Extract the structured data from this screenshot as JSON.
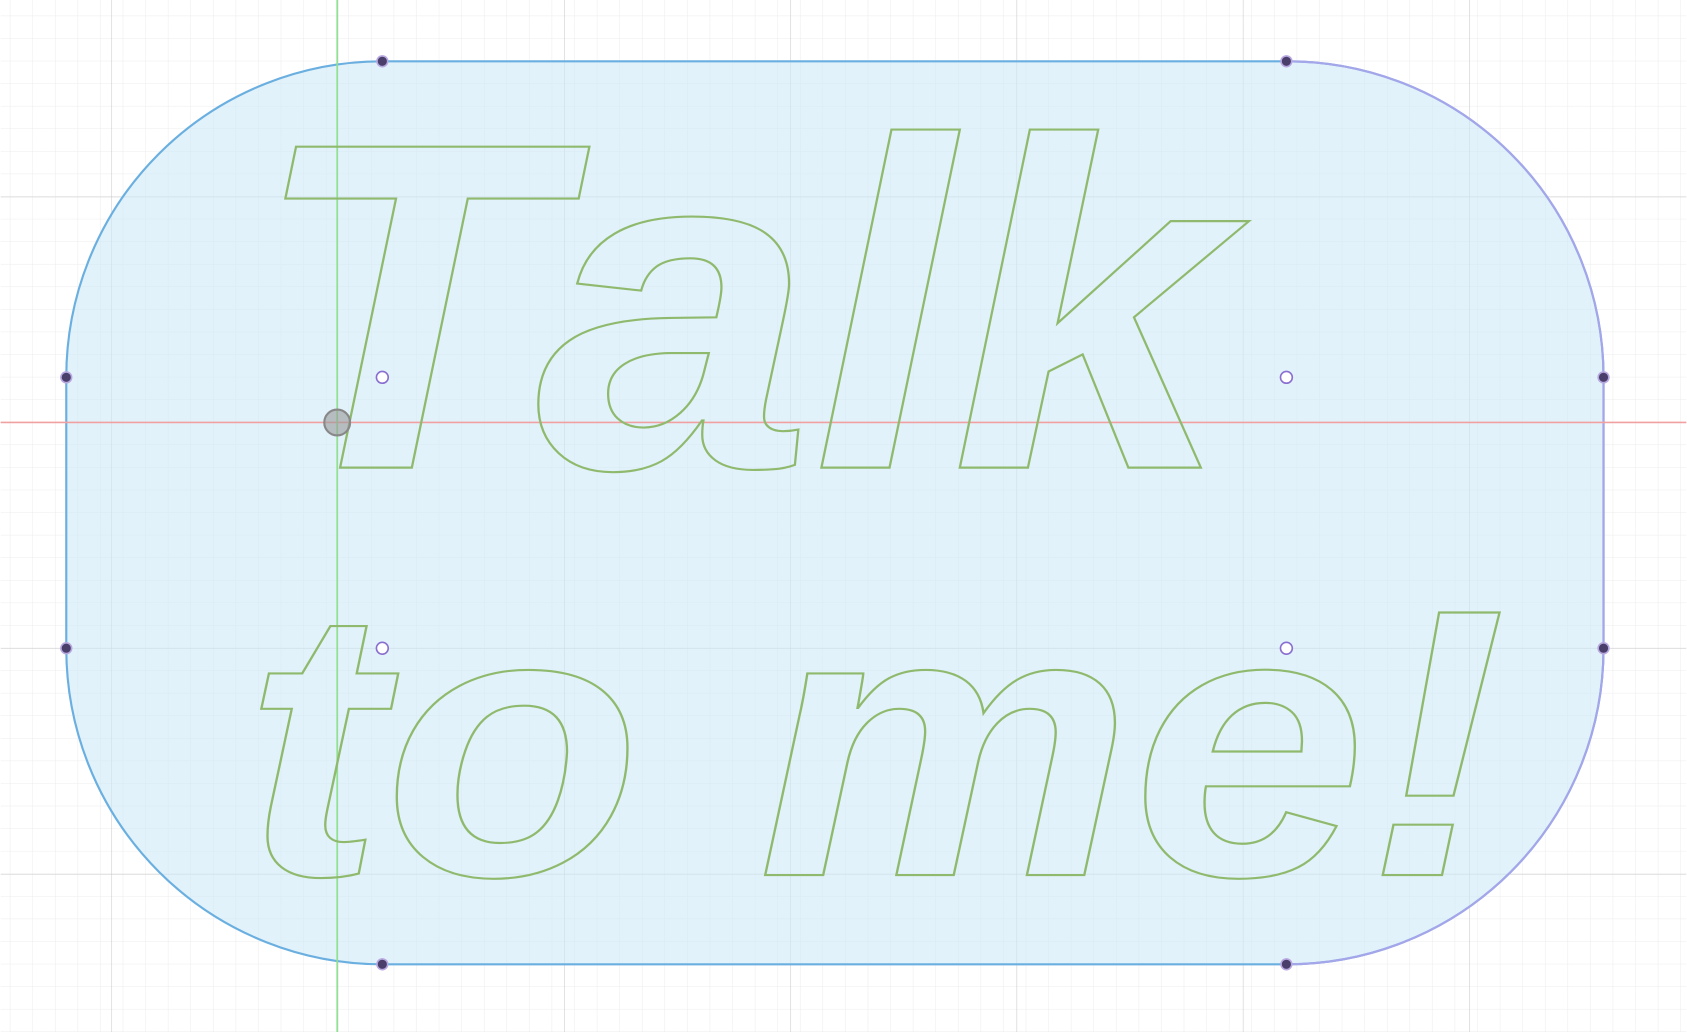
{
  "sketch": {
    "lines": [
      "Talk",
      "to me!"
    ]
  }
}
